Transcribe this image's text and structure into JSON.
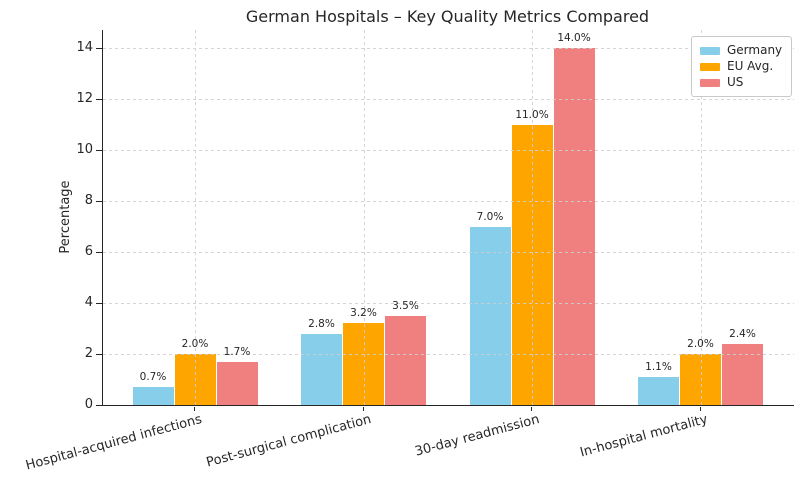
{
  "chart_data": {
    "type": "bar",
    "title": "German Hospitals – Key Quality Metrics Compared",
    "xlabel": "",
    "ylabel": "Percentage",
    "categories": [
      "Hospital-acquired infections",
      "Post-surgical complication",
      "30-day readmission",
      "In-hospital mortality"
    ],
    "series": [
      {
        "name": "Germany",
        "color": "#87CEEB",
        "values": [
          0.7,
          2.8,
          7.0,
          1.1
        ]
      },
      {
        "name": "EU Avg.",
        "color": "#FFA500",
        "values": [
          2.0,
          3.2,
          11.0,
          2.0
        ]
      },
      {
        "name": "US",
        "color": "#F08080",
        "values": [
          1.7,
          3.5,
          14.0,
          2.4
        ]
      }
    ],
    "value_labels": [
      [
        "0.7%",
        "2.8%",
        "7.0%",
        "1.1%"
      ],
      [
        "2.0%",
        "3.2%",
        "11.0%",
        "2.0%"
      ],
      [
        "1.7%",
        "3.5%",
        "14.0%",
        "2.4%"
      ]
    ],
    "yticks": [
      0,
      2,
      4,
      6,
      8,
      10,
      12,
      14
    ],
    "ylim": [
      0,
      14.7
    ],
    "grid": true,
    "grid_color": "#cfcfcf",
    "legend_position": "upper right",
    "axis_color": "#262626"
  }
}
